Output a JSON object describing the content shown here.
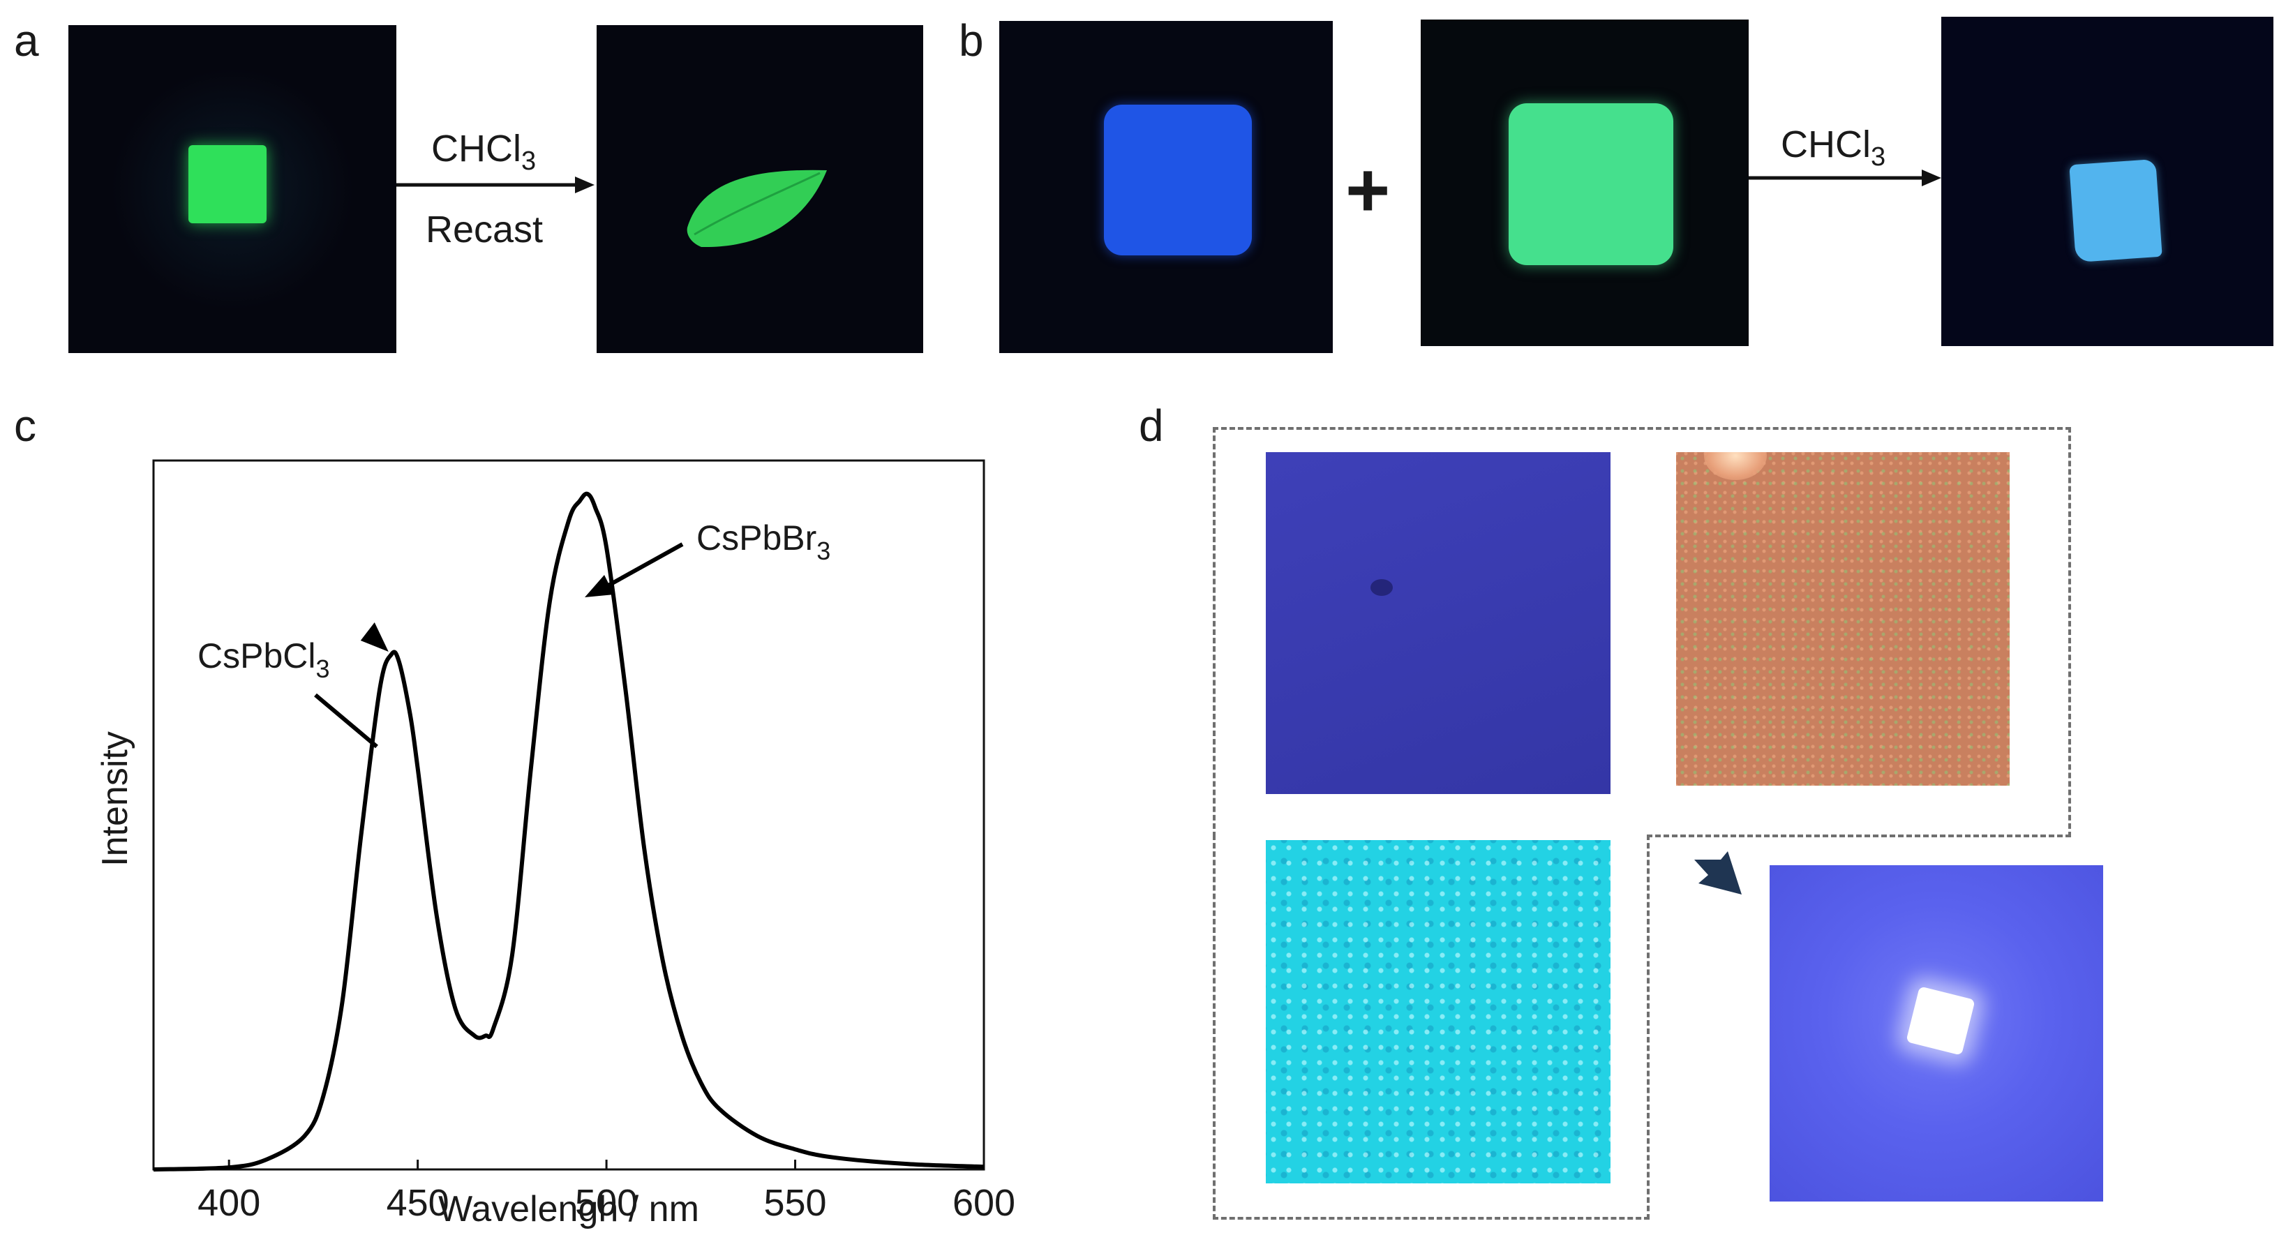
{
  "panels": {
    "a": {
      "letter": "a",
      "arrow_top_label": "CHCl",
      "arrow_top_sub": "3",
      "arrow_bottom_label": "Recast"
    },
    "b": {
      "letter": "b",
      "plus": "+",
      "arrow_label": "CHCl",
      "arrow_sub": "3"
    },
    "c": {
      "letter": "c",
      "annotation_cl": "CsPbCl",
      "annotation_cl_sub": "3",
      "annotation_br": "CsPbBr",
      "annotation_br_sub": "3"
    },
    "d": {
      "letter": "d"
    }
  },
  "colors": {
    "photo_background": "#05060f",
    "green_emission": "#2fe05a",
    "blue_emission": "#1f55e6",
    "mint_emission": "#45e08d",
    "sky_blue_emission": "#52b4ee",
    "purple_micrograph": "#3a3bb0",
    "orange_micrograph": "#c9805f",
    "cyan_micrograph": "#28d8e8",
    "lavender_micrograph": "#5a62ee"
  },
  "chart_data": {
    "type": "line",
    "title": "",
    "xlabel": "Wavelengh / nm",
    "ylabel": "Intensity",
    "xlim": [
      380,
      600
    ],
    "ylim": [
      0,
      1.06
    ],
    "xticks": [
      400,
      450,
      500,
      550,
      600
    ],
    "yticks": [],
    "grid": false,
    "series": [
      {
        "x": [
          380,
          400,
          410,
          420,
          425,
          430,
          435,
          440,
          443,
          445,
          448,
          450,
          455,
          460,
          465,
          468,
          470,
          475,
          480,
          485,
          490,
          493,
          495,
          497,
          500,
          505,
          510,
          515,
          520,
          525,
          530,
          540,
          550,
          560,
          580,
          600
        ],
        "y": [
          0.0,
          0.003,
          0.015,
          0.05,
          0.11,
          0.25,
          0.5,
          0.72,
          0.77,
          0.76,
          0.68,
          0.6,
          0.38,
          0.24,
          0.2,
          0.2,
          0.21,
          0.32,
          0.6,
          0.85,
          0.97,
          1.0,
          1.01,
          0.99,
          0.93,
          0.72,
          0.48,
          0.31,
          0.2,
          0.13,
          0.09,
          0.05,
          0.03,
          0.018,
          0.008,
          0.004
        ]
      }
    ],
    "annotations": [
      {
        "text": "CsPbCl3",
        "x": 443,
        "y": 0.77
      },
      {
        "text": "CsPbBr3",
        "x": 495,
        "y": 1.01
      }
    ]
  }
}
